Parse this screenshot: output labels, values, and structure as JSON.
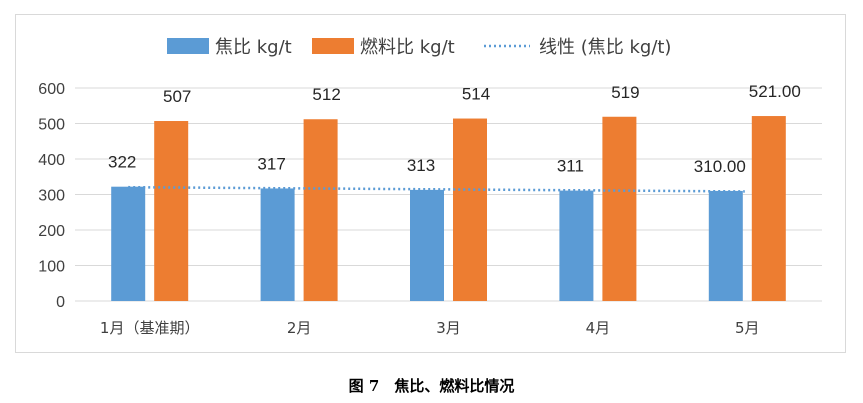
{
  "caption": "图 7　焦比、燃料比情况",
  "colors": {
    "series1": "#5b9bd5",
    "series2": "#ed7d31",
    "trend": "#5b9bd5",
    "grid": "#d9d9d9",
    "text": "#404040"
  },
  "chart_data": {
    "type": "bar",
    "categories": [
      "1月（基准期）",
      "2月",
      "3月",
      "4月",
      "5月"
    ],
    "series": [
      {
        "name": "焦比 kg/t",
        "values": [
          322,
          317,
          313,
          311,
          310
        ],
        "labels": [
          "322",
          "317",
          "313",
          "311",
          "310.00"
        ]
      },
      {
        "name": "燃料比 kg/t",
        "values": [
          507,
          512,
          514,
          519,
          521
        ],
        "labels": [
          "507",
          "512",
          "514",
          "519",
          "521.00"
        ]
      }
    ],
    "trendline": {
      "name": "线性 (焦比 kg/t)",
      "type": "linear",
      "of_series": "焦比 kg/t",
      "style": "dotted"
    },
    "ylim": [
      0,
      600
    ],
    "yticks": [
      0,
      100,
      200,
      300,
      400,
      500,
      600
    ],
    "grid": true,
    "legend": "top"
  }
}
